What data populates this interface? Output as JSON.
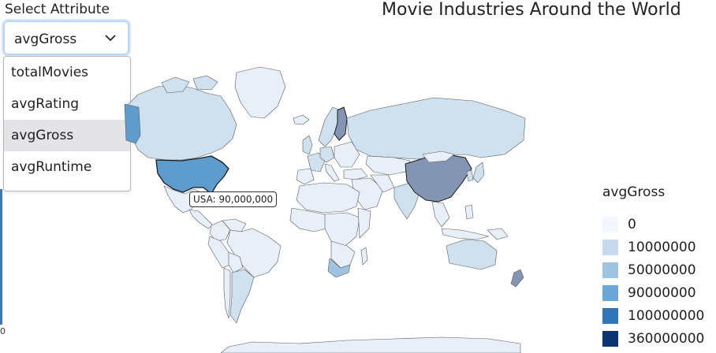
{
  "select": {
    "label": "Select Attribute",
    "value": "avgGross",
    "options": [
      "totalMovies",
      "avgRating",
      "avgGross",
      "avgRuntime"
    ],
    "selected_index": 2
  },
  "title": "Movie Industries Around the World",
  "tooltip": "USA: 90,000,000",
  "axis_zero": "0",
  "legend": {
    "title": "avgGross",
    "items": [
      {
        "label": "0",
        "color": "#f4f8fd"
      },
      {
        "label": "10000000",
        "color": "#c6d9ef"
      },
      {
        "label": "50000000",
        "color": "#9fc4e2"
      },
      {
        "label": "90000000",
        "color": "#6aa6d6"
      },
      {
        "label": "100000000",
        "color": "#2f76b9"
      },
      {
        "label": "360000000",
        "color": "#0c3471"
      }
    ]
  },
  "map_colors": {
    "default_country": "#e8eff8",
    "low_gross": "#cfe0ef",
    "usa": "#5e9ccd",
    "china": "#8495b4",
    "border": "#5a5a5a"
  },
  "chart_data": {
    "type": "choropleth",
    "metric": "avgGross",
    "highlighted": {
      "country": "USA",
      "value": 90000000
    },
    "countries": [
      {
        "name": "USA",
        "value": 90000000
      },
      {
        "name": "China",
        "value": 100000000
      },
      {
        "name": "Canada",
        "value": 10000000
      },
      {
        "name": "Finland",
        "value": 100000000
      },
      {
        "name": "Russia",
        "value": 10000000
      }
    ],
    "legend_placement": "right"
  }
}
